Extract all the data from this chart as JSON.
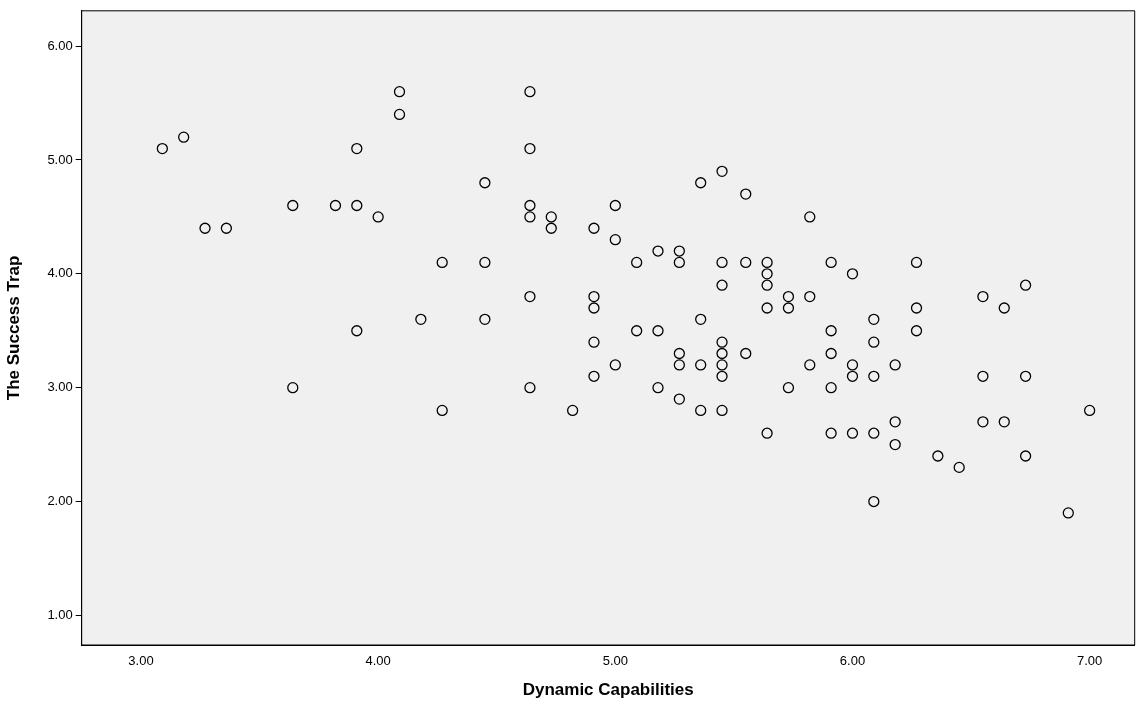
{
  "chart_data": {
    "type": "scatter",
    "xlabel": "Dynamic Capabilities",
    "ylabel": "The Success Trap",
    "color": "#000000",
    "marker": "circle",
    "x": [
      3.09,
      3.18,
      3.27,
      3.36,
      3.64,
      3.64,
      3.82,
      3.91,
      3.91,
      3.91,
      4.0,
      4.09,
      4.09,
      4.18,
      4.27,
      4.27,
      4.45,
      4.45,
      4.45,
      4.64,
      4.64,
      4.64,
      4.64,
      4.64,
      4.64,
      4.73,
      4.73,
      4.82,
      4.91,
      4.91,
      4.91,
      4.91,
      4.91,
      5.0,
      5.0,
      5.0,
      5.09,
      5.09,
      5.18,
      5.18,
      5.18,
      5.27,
      5.27,
      5.27,
      5.27,
      5.27,
      5.36,
      5.36,
      5.36,
      5.36,
      5.45,
      5.45,
      5.45,
      5.45,
      5.45,
      5.45,
      5.45,
      5.45,
      5.55,
      5.55,
      5.55,
      5.64,
      5.64,
      5.64,
      5.64,
      5.64,
      5.73,
      5.73,
      5.73,
      5.82,
      5.82,
      5.82,
      5.91,
      5.91,
      5.91,
      5.91,
      5.91,
      6.0,
      6.0,
      6.0,
      6.0,
      6.09,
      6.09,
      6.09,
      6.09,
      6.09,
      6.18,
      6.18,
      6.18,
      6.27,
      6.27,
      6.27,
      6.36,
      6.45,
      6.55,
      6.55,
      6.55,
      6.64,
      6.64,
      6.73,
      6.73,
      6.73,
      6.91,
      7.0
    ],
    "values": [
      5.1,
      5.2,
      4.4,
      4.4,
      4.6,
      3.0,
      4.6,
      5.1,
      4.6,
      3.5,
      4.5,
      5.6,
      5.4,
      3.6,
      4.1,
      2.8,
      4.8,
      4.1,
      3.6,
      5.6,
      5.1,
      4.6,
      4.5,
      3.8,
      3.0,
      4.5,
      4.4,
      2.8,
      4.4,
      3.8,
      3.7,
      3.4,
      3.1,
      4.6,
      4.3,
      3.2,
      4.1,
      3.5,
      4.2,
      3.5,
      3.0,
      4.2,
      4.1,
      3.3,
      3.2,
      2.9,
      4.8,
      3.6,
      3.2,
      2.8,
      4.9,
      4.1,
      3.9,
      3.4,
      3.3,
      3.2,
      3.1,
      2.8,
      4.7,
      4.1,
      3.3,
      4.1,
      4.0,
      3.9,
      3.7,
      2.6,
      3.8,
      3.7,
      3.0,
      4.5,
      3.8,
      3.2,
      4.1,
      3.5,
      3.3,
      3.0,
      2.6,
      4.0,
      3.2,
      3.1,
      2.6,
      3.6,
      3.4,
      3.1,
      2.6,
      2.0,
      3.2,
      2.7,
      2.5,
      4.1,
      3.7,
      3.5,
      2.4,
      2.3,
      3.8,
      3.1,
      2.7,
      3.7,
      2.7,
      3.9,
      3.1,
      2.4,
      1.9,
      2.8
    ],
    "xlim": [
      2.75,
      7.19
    ],
    "ylim": [
      0.74,
      6.31
    ],
    "xticks": [
      {
        "value": 3,
        "label": "3.00"
      },
      {
        "value": 4,
        "label": "4.00"
      },
      {
        "value": 5,
        "label": "5.00"
      },
      {
        "value": 6,
        "label": "6.00"
      },
      {
        "value": 7,
        "label": "7.00"
      }
    ],
    "yticks": [
      {
        "value": 1,
        "label": "1.00"
      },
      {
        "value": 2,
        "label": "2.00"
      },
      {
        "value": 3,
        "label": "3.00"
      },
      {
        "value": 4,
        "label": "4.00"
      },
      {
        "value": 5,
        "label": "5.00"
      },
      {
        "value": 6,
        "label": "6.00"
      }
    ]
  }
}
